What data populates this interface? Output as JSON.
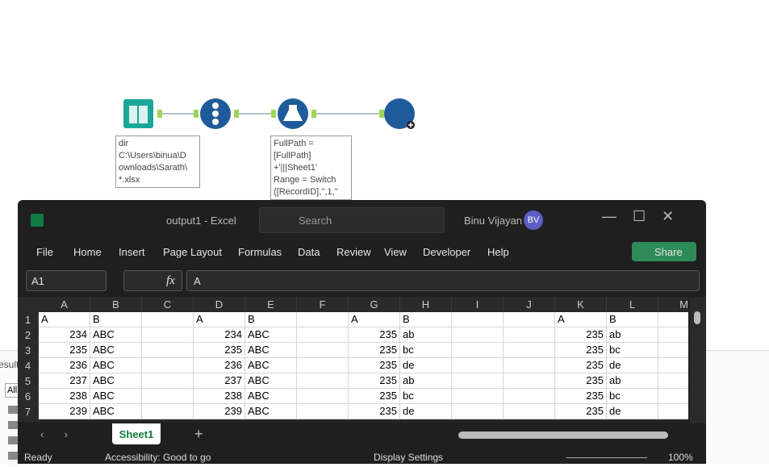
{
  "workflow": {
    "annotations": [
      {
        "lines": [
          "dir",
          "C:\\Users\\binua\\D",
          "ownloads\\Sarath\\",
          "*.xlsx"
        ]
      },
      {
        "lines": [
          "FullPath =",
          "[FullPath]",
          "+'|||Sheet1'",
          "Range = Switch",
          "([RecordID],'',1,''"
        ]
      }
    ]
  },
  "results_panel": {
    "title": "esult",
    "filter": "All"
  },
  "excel": {
    "title": "output1  -  Excel",
    "search": "Search",
    "user": "Binu Vijayan",
    "avatar": "BV",
    "menu": [
      "File",
      "Home",
      "Insert",
      "Page Layout",
      "Formulas",
      "Data",
      "Review",
      "View",
      "Developer",
      "Help"
    ],
    "share": "Share",
    "name_box": "A1",
    "fx": "fx",
    "formula": "A",
    "columns": [
      "A",
      "B",
      "C",
      "D",
      "E",
      "F",
      "G",
      "H",
      "I",
      "J",
      "K",
      "L",
      "M"
    ],
    "rows": [
      {
        "header": 1,
        "cells": [
          "A",
          "B",
          null,
          "A",
          "B",
          null,
          "A",
          "B",
          null,
          null,
          "A",
          "B",
          null
        ]
      },
      {
        "header": 2,
        "cells": [
          234,
          "ABC",
          null,
          234,
          "ABC",
          null,
          235,
          "ab",
          null,
          null,
          235,
          "ab",
          null
        ]
      },
      {
        "header": 3,
        "cells": [
          235,
          "ABC",
          null,
          235,
          "ABC",
          null,
          235,
          "bc",
          null,
          null,
          235,
          "bc",
          null
        ]
      },
      {
        "header": 4,
        "cells": [
          236,
          "ABC",
          null,
          236,
          "ABC",
          null,
          235,
          "de",
          null,
          null,
          235,
          "de",
          null
        ]
      },
      {
        "header": 5,
        "cells": [
          237,
          "ABC",
          null,
          237,
          "ABC",
          null,
          235,
          "ab",
          null,
          null,
          235,
          "ab",
          null
        ]
      },
      {
        "header": 6,
        "cells": [
          238,
          "ABC",
          null,
          238,
          "ABC",
          null,
          235,
          "bc",
          null,
          null,
          235,
          "bc",
          null
        ]
      },
      {
        "header": 7,
        "cells": [
          239,
          "ABC",
          null,
          239,
          "ABC",
          null,
          235,
          "de",
          null,
          null,
          235,
          "de",
          null
        ]
      }
    ],
    "sheet_tab": "Sheet1",
    "status": {
      "ready": "Ready",
      "accessibility": "Accessibility: Good to go",
      "display": "Display Settings",
      "zoom": "100%"
    }
  }
}
